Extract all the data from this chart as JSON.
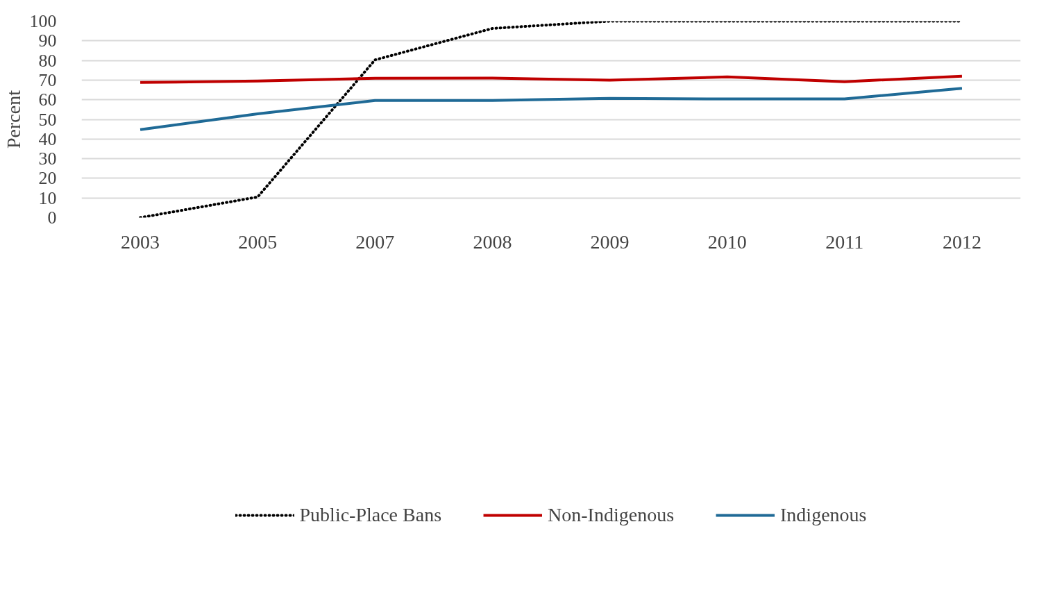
{
  "chart_data": {
    "type": "line",
    "ylabel": "Percent",
    "categories": [
      "2003",
      "2005",
      "2007",
      "2008",
      "2009",
      "2010",
      "2011",
      "2012"
    ],
    "series": [
      {
        "name": "Public-Place Bans",
        "color": "#000000",
        "line_style": "dotted",
        "values": [
          0,
          10.5,
          80.3,
          96.3,
          100,
          100,
          100,
          100
        ]
      },
      {
        "name": "Non-Indigenous",
        "color": "#c00000",
        "line_style": "solid",
        "values": [
          68.8,
          69.5,
          70.9,
          71,
          70,
          71.6,
          69.2,
          72
        ]
      },
      {
        "name": "Indigenous",
        "color": "#1f6a96",
        "line_style": "solid",
        "values": [
          44.8,
          52.8,
          59.6,
          59.6,
          60.7,
          60.4,
          60.4,
          65.8
        ]
      }
    ],
    "ylim": [
      0,
      100
    ],
    "yticks": [
      0,
      10,
      20,
      30,
      40,
      50,
      60,
      70,
      80,
      90,
      100
    ],
    "grid": "y",
    "legend": "bottom",
    "marker": "none"
  }
}
